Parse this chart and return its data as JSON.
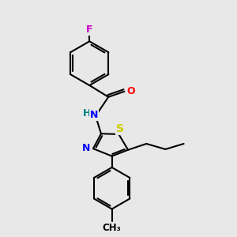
{
  "background_color": "#e8e8e8",
  "bond_color": "#000000",
  "bond_width": 1.5,
  "atom_colors": {
    "F": "#cc00cc",
    "O": "#ff0000",
    "N": "#0000ff",
    "S": "#cccc00",
    "H": "#008080",
    "C": "#000000"
  },
  "font_size": 9,
  "fig_width": 3.0,
  "fig_height": 3.0,
  "xlim": [
    0.0,
    6.5
  ],
  "ylim": [
    1.0,
    8.5
  ]
}
